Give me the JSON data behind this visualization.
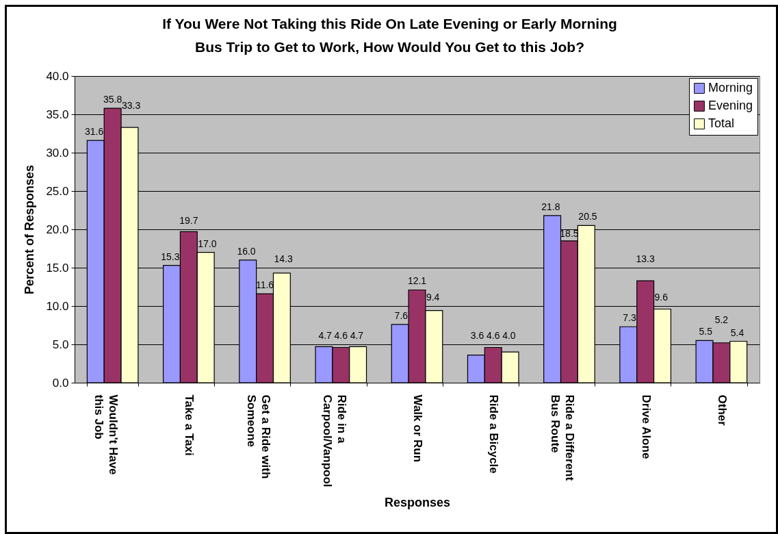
{
  "chart_data": {
    "type": "bar",
    "title": "If You Were Not Taking this Ride On Late Evening or Early Morning\nBus Trip to Get to Work, How Would You Get to this Job?",
    "xlabel": "Responses",
    "ylabel": "Percent of Responses",
    "categories": [
      "Wouldn't Have this Job",
      "Take a Taxi",
      "Get a Ride with Someone",
      "Ride in a Carpool/Vanpool",
      "Walk or Run",
      "Ride a Bicycle",
      "Ride a Different Bus Route",
      "Drive Alone",
      "Other"
    ],
    "series": [
      {
        "name": "Morning",
        "color": "#9999ff",
        "values": [
          31.6,
          15.3,
          16.0,
          4.7,
          7.6,
          3.6,
          21.8,
          7.3,
          5.5
        ],
        "value_labels": [
          "31.6",
          "15.3",
          "16.0",
          "4.7",
          "7.6",
          "3.6",
          "21.8",
          "7.3",
          "5.5"
        ]
      },
      {
        "name": "Evening",
        "color": "#993366",
        "values": [
          35.8,
          19.7,
          11.6,
          4.6,
          12.1,
          4.6,
          18.5,
          13.3,
          5.2
        ],
        "value_labels": [
          "35.8",
          "19.7",
          "11.6",
          "4.6",
          "12.1",
          "4.6",
          "18.5",
          "13.3",
          "5.2"
        ]
      },
      {
        "name": "Total",
        "color": "#ffffcc",
        "values": [
          33.3,
          17.0,
          14.3,
          4.7,
          9.4,
          4.0,
          20.5,
          9.6,
          5.4
        ],
        "value_labels": [
          "33.3",
          "17.0",
          "14.3",
          "4.7",
          "9.4",
          "4.0",
          "20.5",
          "9.6",
          "5.4"
        ]
      }
    ],
    "ylim": [
      0,
      40
    ],
    "yticks": [
      {
        "value": 0,
        "label": "0.0"
      },
      {
        "value": 5,
        "label": "5.0"
      },
      {
        "value": 10,
        "label": "10.0"
      },
      {
        "value": 15,
        "label": "15.0"
      },
      {
        "value": 20,
        "label": "20.0"
      },
      {
        "value": 25,
        "label": "25.0"
      },
      {
        "value": 30,
        "label": "30.0"
      },
      {
        "value": 35,
        "label": "35.0"
      },
      {
        "value": 40,
        "label": "40.0"
      }
    ],
    "grid": "y",
    "legend": "top right"
  }
}
